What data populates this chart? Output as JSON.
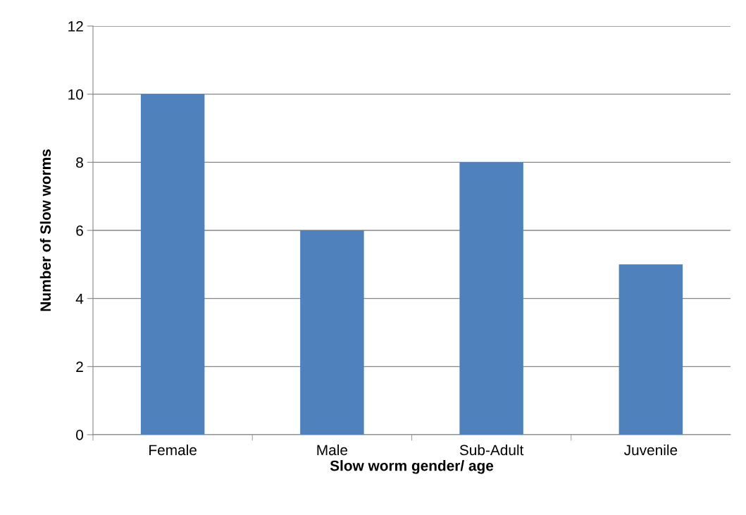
{
  "chart_data": {
    "type": "bar",
    "xlabel": "Slow worm gender/ age",
    "ylabel": "Number of Slow worms",
    "categories": [
      "Female",
      "Male",
      "Sub-Adult",
      "Juvenile"
    ],
    "values": [
      10,
      6,
      8,
      5
    ],
    "color": "#4f81bd",
    "ylim": [
      0,
      12
    ],
    "yticks": [
      0,
      2,
      4,
      6,
      8,
      10,
      12
    ],
    "grid": "y",
    "legend": false
  }
}
